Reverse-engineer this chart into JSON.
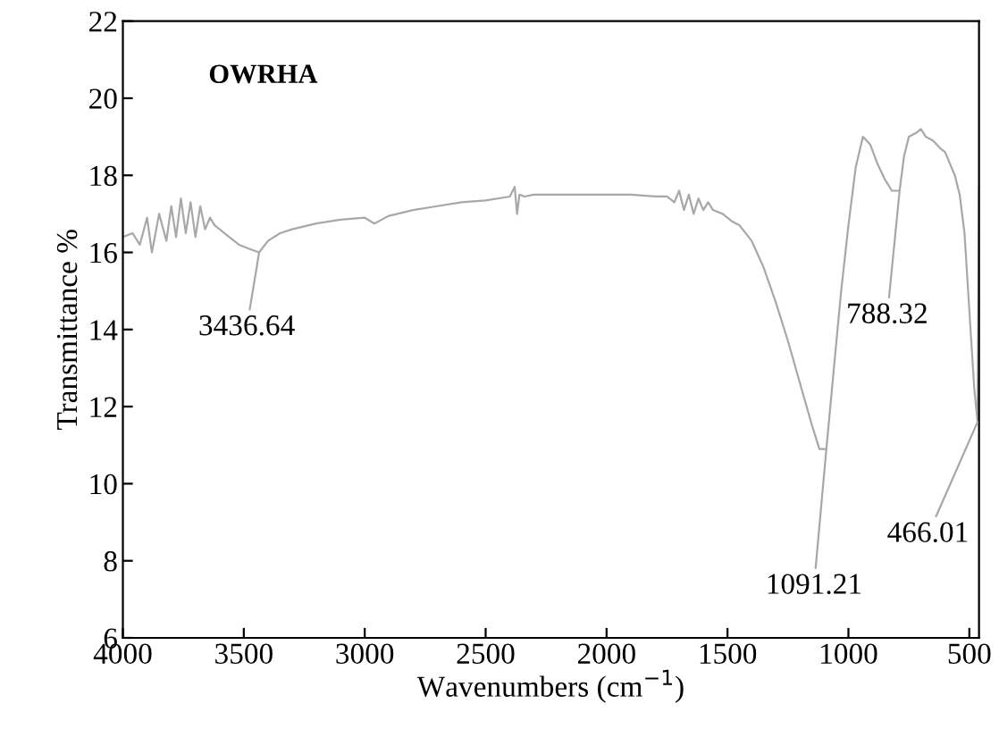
{
  "chart_data": {
    "type": "line",
    "title": "OWRHA",
    "xlabel": "Wavenumbers (cm$^{−1}$)",
    "ylabel": "Transmittance %",
    "x": [
      4000,
      3960,
      3930,
      3900,
      3880,
      3850,
      3820,
      3800,
      3780,
      3760,
      3740,
      3720,
      3700,
      3680,
      3660,
      3640,
      3620,
      3600,
      3560,
      3520,
      3480,
      3436.64,
      3400,
      3350,
      3300,
      3200,
      3100,
      3000,
      2960,
      2930,
      2900,
      2800,
      2700,
      2600,
      2500,
      2400,
      2380,
      2370,
      2360,
      2340,
      2300,
      2200,
      2100,
      2000,
      1900,
      1800,
      1750,
      1720,
      1700,
      1680,
      1660,
      1640,
      1620,
      1600,
      1580,
      1560,
      1520,
      1480,
      1450,
      1400,
      1350,
      1300,
      1250,
      1200,
      1150,
      1120,
      1091.21,
      1060,
      1030,
      1000,
      970,
      940,
      910,
      880,
      850,
      820,
      788.32,
      770,
      750,
      720,
      700,
      680,
      650,
      620,
      600,
      580,
      560,
      540,
      520,
      500,
      480,
      466.01,
      460
    ],
    "series": [
      {
        "color": "#a8a8a8",
        "values": [
          16.4,
          16.5,
          16.2,
          16.9,
          16.0,
          17.0,
          16.3,
          17.2,
          16.4,
          17.4,
          16.5,
          17.3,
          16.4,
          17.2,
          16.6,
          16.9,
          16.7,
          16.6,
          16.4,
          16.2,
          16.1,
          16.0,
          16.3,
          16.5,
          16.6,
          16.75,
          16.85,
          16.9,
          16.75,
          16.85,
          16.95,
          17.1,
          17.2,
          17.3,
          17.35,
          17.45,
          17.7,
          17.0,
          17.5,
          17.45,
          17.5,
          17.5,
          17.5,
          17.5,
          17.5,
          17.45,
          17.45,
          17.3,
          17.6,
          17.1,
          17.5,
          17.0,
          17.4,
          17.1,
          17.3,
          17.1,
          17.0,
          16.8,
          16.7,
          16.3,
          15.6,
          14.7,
          13.7,
          12.6,
          11.5,
          10.9,
          10.9,
          13.0,
          15.0,
          16.7,
          18.2,
          19.0,
          18.8,
          18.3,
          17.9,
          17.6,
          17.6,
          18.5,
          19.0,
          19.1,
          19.2,
          19.0,
          18.9,
          18.7,
          18.6,
          18.3,
          18.0,
          17.5,
          16.5,
          14.5,
          12.5,
          11.6,
          17.7
        ]
      }
    ],
    "xlim": [
      4000,
      460
    ],
    "ylim": [
      6,
      22
    ],
    "xticks": [
      4000,
      3500,
      3000,
      2500,
      2000,
      1500,
      1000,
      500
    ],
    "yticks": [
      6,
      8,
      10,
      12,
      14,
      16,
      18,
      20,
      22
    ],
    "annotations": [
      {
        "text": "3436.64",
        "x": 3436.64,
        "y": 16.0
      },
      {
        "text": "1091.21",
        "x": 1091.21,
        "y": 10.9
      },
      {
        "text": "788.32",
        "x": 788.32,
        "y": 17.6
      },
      {
        "text": "466.01",
        "x": 466.01,
        "y": 11.6
      }
    ],
    "grid": false,
    "legend": false,
    "marker": "none",
    "line_style": "solid"
  }
}
